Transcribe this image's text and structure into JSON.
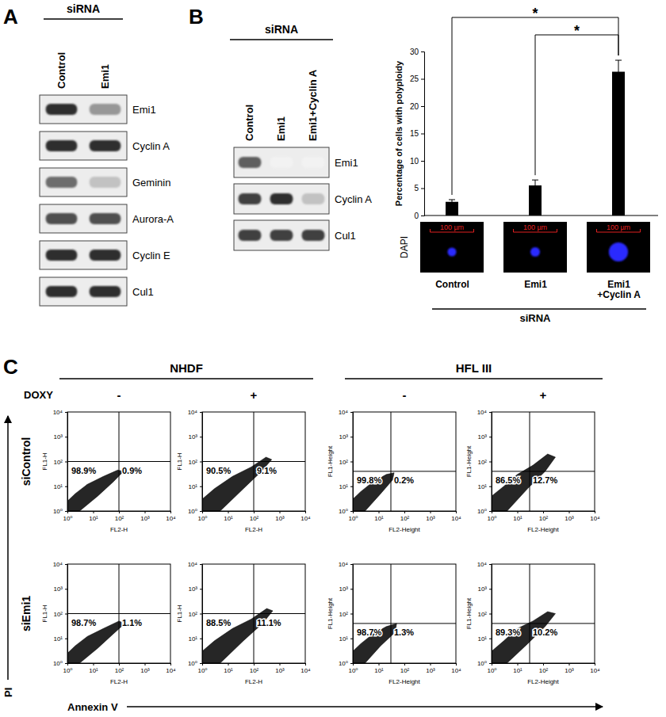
{
  "panel_labels": [
    "A",
    "B",
    "C"
  ],
  "blots": [
    {
      "header": "siRNA",
      "lanes": [
        "Control",
        "Emi1"
      ],
      "rows": [
        {
          "name": "Emi1",
          "intensity": [
            0.85,
            0.5
          ]
        },
        {
          "name": "Cyclin A",
          "intensity": [
            0.85,
            0.85
          ]
        },
        {
          "name": "Geminin",
          "intensity": [
            0.65,
            0.35
          ]
        },
        {
          "name": "Aurora-A",
          "intensity": [
            0.75,
            0.75
          ]
        },
        {
          "name": "Cyclin E",
          "intensity": [
            0.85,
            0.85
          ]
        },
        {
          "name": "Cul1",
          "intensity": [
            0.85,
            0.85
          ]
        }
      ]
    },
    {
      "header": "siRNA",
      "lanes": [
        "Control",
        "Emi1",
        "Emi1+Cyclin A"
      ],
      "rows": [
        {
          "name": "Emi1",
          "intensity": [
            0.7,
            0.1,
            0.1
          ]
        },
        {
          "name": "Cyclin A",
          "intensity": [
            0.8,
            0.85,
            0.35
          ]
        },
        {
          "name": "Cul1",
          "intensity": [
            0.8,
            0.8,
            0.8
          ]
        }
      ]
    }
  ],
  "chart_data": [
    {
      "type": "bar",
      "categories": [
        "Control",
        "Emi1",
        "Emi1\n+Cyclin A"
      ],
      "values": [
        2.5,
        5.5,
        26.3
      ],
      "errors": [
        0.4,
        1.0,
        2.1
      ],
      "color": "#000000",
      "ylim": [
        0,
        30
      ],
      "yticks": [
        0,
        5,
        10,
        15,
        20,
        25,
        30
      ],
      "ylabel": "Percentage of cells with polyploidy",
      "xlabel": "siRNA",
      "significance": [
        {
          "from": 0,
          "to": 2,
          "label": "*"
        },
        {
          "from": 1,
          "to": 2,
          "label": "*"
        }
      ],
      "images": {
        "label": "DAPI",
        "scale_bar": {
          "value": 100,
          "label": "100 µm"
        },
        "nucleus_diameter": [
          20,
          22,
          44
        ],
        "color": "#2a2aff"
      }
    },
    {
      "type": "scatter",
      "xlabel": "FL2-H",
      "ylabel": "FL1-H",
      "log": true,
      "xlim": [
        1,
        10000
      ],
      "ylim": [
        1,
        10000
      ],
      "xticks": [
        {
          "value": 1,
          "label": "10⁰"
        },
        {
          "value": 10,
          "label": "10¹"
        },
        {
          "value": 100,
          "label": "10²"
        },
        {
          "value": 1000,
          "label": "10³"
        },
        {
          "value": 10000,
          "label": "10⁴"
        }
      ],
      "yticks": [
        {
          "value": 1,
          "label": "10⁰"
        },
        {
          "value": 10,
          "label": "10¹"
        },
        {
          "value": 100,
          "label": "10²"
        },
        {
          "value": 1000,
          "label": "10³"
        },
        {
          "value": 10000,
          "label": "10⁴"
        }
      ],
      "gate": {
        "x": 100,
        "y": 100
      },
      "quadrants": {
        "values": [
          98.9,
          0.9
        ],
        "value_labels": [
          "98.9%",
          "0.9%"
        ]
      },
      "color": "#000000",
      "cloud": {
        "x": [
          1,
          1,
          2,
          6,
          25,
          90,
          150,
          60,
          15,
          3
        ],
        "y": [
          1,
          2.5,
          5,
          12,
          25,
          45,
          40,
          15,
          4,
          1
        ]
      }
    },
    {
      "type": "scatter",
      "xlabel": "FL2-H",
      "ylabel": "FL1-H",
      "log": true,
      "xlim": [
        1,
        10000
      ],
      "ylim": [
        1,
        10000
      ],
      "xticks": [
        {
          "value": 1,
          "label": "10⁰"
        },
        {
          "value": 10,
          "label": "10¹"
        },
        {
          "value": 100,
          "label": "10²"
        },
        {
          "value": 1000,
          "label": "10³"
        },
        {
          "value": 10000,
          "label": "10⁴"
        }
      ],
      "yticks": [
        {
          "value": 1,
          "label": "10⁰"
        },
        {
          "value": 10,
          "label": "10¹"
        },
        {
          "value": 100,
          "label": "10²"
        },
        {
          "value": 1000,
          "label": "10³"
        },
        {
          "value": 10000,
          "label": "10⁴"
        }
      ],
      "gate": {
        "x": 100,
        "y": 100
      },
      "quadrants": {
        "values": [
          90.5,
          9.1
        ],
        "value_labels": [
          "90.5%",
          "9.1%"
        ]
      },
      "color": "#000000",
      "cloud": {
        "x": [
          1,
          1,
          3,
          15,
          80,
          300,
          500,
          200,
          40,
          5
        ],
        "y": [
          1,
          3,
          8,
          25,
          60,
          150,
          120,
          40,
          8,
          1
        ]
      }
    },
    {
      "type": "scatter",
      "xlabel": "FL2-Height",
      "ylabel": "FL1-Height",
      "log": true,
      "xlim": [
        1,
        10000
      ],
      "ylim": [
        1,
        10000
      ],
      "xticks": [
        {
          "value": 1,
          "label": "10⁰"
        },
        {
          "value": 10,
          "label": "10¹"
        },
        {
          "value": 100,
          "label": "10²"
        },
        {
          "value": 1000,
          "label": "10³"
        },
        {
          "value": 10000,
          "label": "10⁴"
        }
      ],
      "yticks": [
        {
          "value": 1,
          "label": "10⁰"
        },
        {
          "value": 10,
          "label": "10¹"
        },
        {
          "value": 100,
          "label": "10²"
        },
        {
          "value": 1000,
          "label": "10³"
        },
        {
          "value": 10000,
          "label": "10⁴"
        }
      ],
      "gate": {
        "x": 30,
        "y": 40
      },
      "quadrants": {
        "values": [
          99.8,
          0.2
        ],
        "value_labels": [
          "99.8%",
          "0.2%"
        ]
      },
      "color": "#000000",
      "cloud": {
        "x": [
          1,
          1,
          2,
          6,
          20,
          40,
          35,
          12,
          3
        ],
        "y": [
          1,
          3,
          6,
          15,
          30,
          35,
          18,
          5,
          1
        ]
      }
    },
    {
      "type": "scatter",
      "xlabel": "FL2-Height",
      "ylabel": "FL1-Height",
      "log": true,
      "xlim": [
        1,
        10000
      ],
      "ylim": [
        1,
        10000
      ],
      "xticks": [
        {
          "value": 1,
          "label": "10⁰"
        },
        {
          "value": 10,
          "label": "10¹"
        },
        {
          "value": 100,
          "label": "10²"
        },
        {
          "value": 1000,
          "label": "10³"
        },
        {
          "value": 10000,
          "label": "10⁴"
        }
      ],
      "yticks": [
        {
          "value": 1,
          "label": "10⁰"
        },
        {
          "value": 10,
          "label": "10¹"
        },
        {
          "value": 100,
          "label": "10²"
        },
        {
          "value": 1000,
          "label": "10³"
        },
        {
          "value": 10000,
          "label": "10⁴"
        }
      ],
      "gate": {
        "x": 30,
        "y": 40
      },
      "quadrants": {
        "values": [
          86.5,
          12.7
        ],
        "value_labels": [
          "86.5%",
          "12.7%"
        ]
      },
      "color": "#000000",
      "cloud": {
        "x": [
          1,
          1,
          3,
          10,
          40,
          150,
          300,
          120,
          25,
          4
        ],
        "y": [
          1,
          4,
          10,
          30,
          70,
          200,
          150,
          40,
          8,
          1
        ]
      }
    },
    {
      "type": "scatter",
      "xlabel": "FL2-H",
      "ylabel": "FL1-H",
      "log": true,
      "xlim": [
        1,
        10000
      ],
      "ylim": [
        1,
        10000
      ],
      "xticks": [
        {
          "value": 1,
          "label": "10⁰"
        },
        {
          "value": 10,
          "label": "10¹"
        },
        {
          "value": 100,
          "label": "10²"
        },
        {
          "value": 1000,
          "label": "10³"
        },
        {
          "value": 10000,
          "label": "10⁴"
        }
      ],
      "yticks": [
        {
          "value": 1,
          "label": "10⁰"
        },
        {
          "value": 10,
          "label": "10¹"
        },
        {
          "value": 100,
          "label": "10²"
        },
        {
          "value": 1000,
          "label": "10³"
        },
        {
          "value": 10000,
          "label": "10⁴"
        }
      ],
      "gate": {
        "x": 100,
        "y": 100
      },
      "quadrants": {
        "values": [
          98.7,
          1.1
        ],
        "value_labels": [
          "98.7%",
          "1.1%"
        ]
      },
      "color": "#000000",
      "cloud": {
        "x": [
          1,
          1,
          2,
          6,
          25,
          100,
          170,
          60,
          15,
          3
        ],
        "y": [
          1,
          2.5,
          5,
          12,
          25,
          50,
          40,
          15,
          4,
          1
        ]
      }
    },
    {
      "type": "scatter",
      "xlabel": "FL2-H",
      "ylabel": "FL1-H",
      "log": true,
      "xlim": [
        1,
        10000
      ],
      "ylim": [
        1,
        10000
      ],
      "xticks": [
        {
          "value": 1,
          "label": "10⁰"
        },
        {
          "value": 10,
          "label": "10¹"
        },
        {
          "value": 100,
          "label": "10²"
        },
        {
          "value": 1000,
          "label": "10³"
        },
        {
          "value": 10000,
          "label": "10⁴"
        }
      ],
      "yticks": [
        {
          "value": 1,
          "label": "10⁰"
        },
        {
          "value": 10,
          "label": "10¹"
        },
        {
          "value": 100,
          "label": "10²"
        },
        {
          "value": 1000,
          "label": "10³"
        },
        {
          "value": 10000,
          "label": "10⁴"
        }
      ],
      "gate": {
        "x": 100,
        "y": 100
      },
      "quadrants": {
        "values": [
          88.5,
          11.1
        ],
        "value_labels": [
          "88.5%",
          "11.1%"
        ]
      },
      "color": "#000000",
      "cloud": {
        "x": [
          1,
          1,
          3,
          15,
          80,
          320,
          550,
          220,
          40,
          5
        ],
        "y": [
          1,
          3,
          8,
          25,
          60,
          160,
          130,
          40,
          8,
          1
        ]
      }
    },
    {
      "type": "scatter",
      "xlabel": "FL2-Height",
      "ylabel": "FL1-Height",
      "log": true,
      "xlim": [
        1,
        10000
      ],
      "ylim": [
        1,
        10000
      ],
      "xticks": [
        {
          "value": 1,
          "label": "10⁰"
        },
        {
          "value": 10,
          "label": "10¹"
        },
        {
          "value": 100,
          "label": "10²"
        },
        {
          "value": 1000,
          "label": "10³"
        },
        {
          "value": 10000,
          "label": "10⁴"
        }
      ],
      "yticks": [
        {
          "value": 1,
          "label": "10⁰"
        },
        {
          "value": 10,
          "label": "10¹"
        },
        {
          "value": 100,
          "label": "10²"
        },
        {
          "value": 1000,
          "label": "10³"
        },
        {
          "value": 10000,
          "label": "10⁴"
        }
      ],
      "gate": {
        "x": 30,
        "y": 40
      },
      "quadrants": {
        "values": [
          98.7,
          1.3
        ],
        "value_labels": [
          "98.7%",
          "1.3%"
        ]
      },
      "color": "#000000",
      "cloud": {
        "x": [
          1,
          1,
          2,
          6,
          20,
          50,
          45,
          12,
          3
        ],
        "y": [
          1,
          3,
          6,
          15,
          30,
          40,
          18,
          5,
          1
        ]
      }
    },
    {
      "type": "scatter",
      "xlabel": "FL2-Height",
      "ylabel": "FL1-Height",
      "log": true,
      "xlim": [
        1,
        10000
      ],
      "ylim": [
        1,
        10000
      ],
      "xticks": [
        {
          "value": 1,
          "label": "10⁰"
        },
        {
          "value": 10,
          "label": "10¹"
        },
        {
          "value": 100,
          "label": "10²"
        },
        {
          "value": 1000,
          "label": "10³"
        },
        {
          "value": 10000,
          "label": "10⁴"
        }
      ],
      "yticks": [
        {
          "value": 1,
          "label": "10⁰"
        },
        {
          "value": 10,
          "label": "10¹"
        },
        {
          "value": 100,
          "label": "10²"
        },
        {
          "value": 1000,
          "label": "10³"
        },
        {
          "value": 10000,
          "label": "10⁴"
        }
      ],
      "gate": {
        "x": 30,
        "y": 40
      },
      "quadrants": {
        "values": [
          89.3,
          10.2
        ],
        "value_labels": [
          "89.3%",
          "10.2%"
        ]
      },
      "color": "#000000",
      "cloud": {
        "x": [
          1,
          1,
          3,
          10,
          40,
          150,
          300,
          120,
          25,
          4
        ],
        "y": [
          1,
          3,
          8,
          25,
          50,
          120,
          100,
          30,
          6,
          1
        ]
      }
    }
  ],
  "flow_grid": {
    "cell_lines": [
      "NHDF",
      "HFL III"
    ],
    "treatment_label": "DOXY",
    "treatments": [
      "-",
      "+"
    ],
    "rows": [
      "siControl",
      "siEmi1"
    ],
    "y_title": "PI",
    "x_title": "Annexin V"
  }
}
